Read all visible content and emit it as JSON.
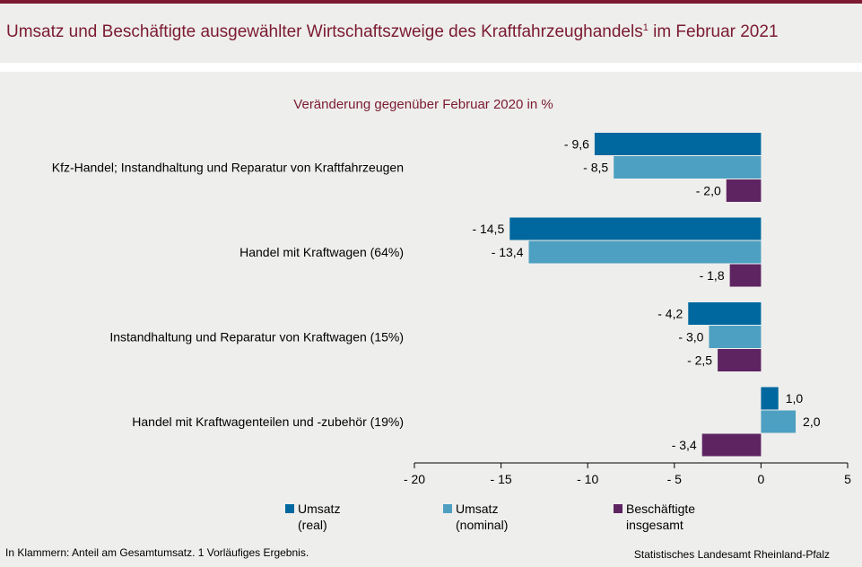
{
  "header": {
    "title": "Umsatz und Beschäftigte ausgewählter Wirtschaftszweige des Kraftfahrzeughandels",
    "title_sup": "1",
    "title_suffix": " im Februar 2021"
  },
  "colors": {
    "brand": "#7b1a31",
    "umsatz_real": "#00689e",
    "umsatz_nominal": "#4da0c1",
    "beschaeftigte": "#5e2361"
  },
  "chart_data": {
    "type": "bar",
    "orientation": "horizontal",
    "subtitle": "Veränderung gegenüber Februar 2020 in %",
    "categories": [
      "Kfz-Handel; Instandhaltung und Reparatur von Kraftfahrzeugen",
      "Handel mit Kraftwagen (64%)",
      "Instandhaltung und Reparatur von Kraftwagen (15%)",
      "Handel mit Kraftwagenteilen und -zubehör (19%)"
    ],
    "series": [
      {
        "name": "Umsatz (real)",
        "color": "#00689e",
        "values": [
          -9.6,
          -14.5,
          -4.2,
          1.0
        ],
        "labels": [
          "- 9,6",
          "- 14,5",
          "- 4,2",
          "1,0"
        ]
      },
      {
        "name": "Umsatz (nominal)",
        "color": "#4da0c1",
        "values": [
          -8.5,
          -13.4,
          -3.0,
          2.0
        ],
        "labels": [
          "- 8,5",
          "- 13,4",
          "- 3,0",
          "2,0"
        ]
      },
      {
        "name": "Beschäftigte insgesamt",
        "color": "#5e2361",
        "values": [
          -2.0,
          -1.8,
          -2.5,
          -3.4
        ],
        "labels": [
          "- 2,0",
          "- 1,8",
          "- 2,5",
          "- 3,4"
        ]
      }
    ],
    "xlim": [
      -20,
      5
    ],
    "ticks": [
      -20,
      -15,
      -10,
      -5,
      0,
      5
    ],
    "tick_labels": [
      "- 20",
      "- 15",
      "- 10",
      "- 5",
      "0",
      "5"
    ],
    "grid": false,
    "legend_position": "bottom"
  },
  "legend": [
    {
      "line1": "Umsatz",
      "line2": "(real)",
      "color": "#00689e"
    },
    {
      "line1": "Umsatz",
      "line2": "(nominal)",
      "color": "#4da0c1"
    },
    {
      "line1": "Beschäftigte",
      "line2": "insgesamt",
      "color": "#5e2361"
    }
  ],
  "footer": {
    "note": "In Klammern: Anteil am Gesamtumsatz. 1 Vorläufiges Ergebnis.",
    "source": "Statistisches Landesamt Rheinland-Pfalz"
  }
}
